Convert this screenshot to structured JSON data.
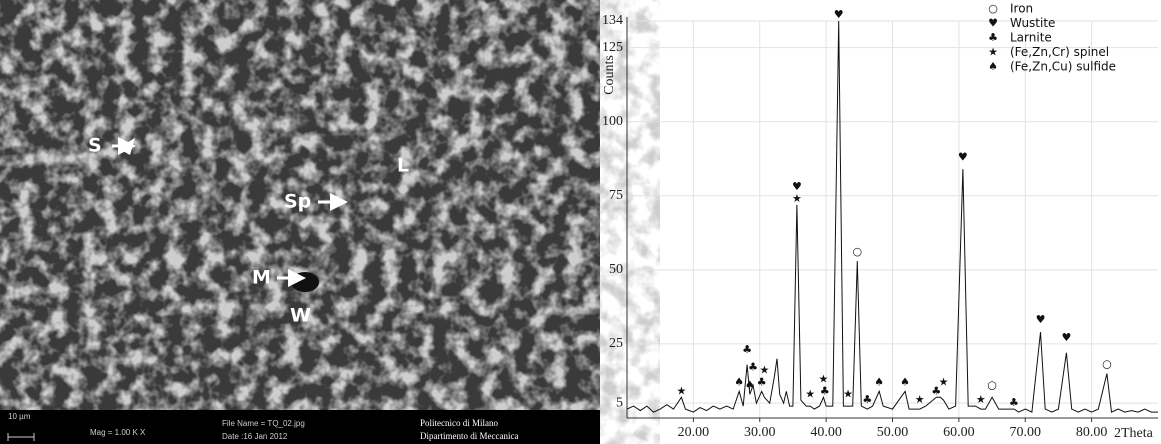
{
  "image": {
    "labels": [
      "S",
      "Sp",
      "L",
      "M",
      "W"
    ],
    "scale": "10 µm",
    "mag": "Mag =  1.00 K X",
    "file": "File Name = TQ_02.jpg",
    "date": "Date :16 Jan 2012",
    "institution": "Politecnico di Milano",
    "department": "Dipartimento di Meccanica"
  },
  "chart_data": {
    "type": "line",
    "ylabel": "Counts",
    "xlabel": "2Theta",
    "xlim": [
      10,
      90
    ],
    "ylim": [
      0,
      134
    ],
    "xticks": [
      {
        "value": 20,
        "label": "20.00"
      },
      {
        "value": 30,
        "label": "30.00"
      },
      {
        "value": 40,
        "label": "40.00"
      },
      {
        "value": 50,
        "label": "50.00"
      },
      {
        "value": 60,
        "label": "60.00"
      },
      {
        "value": 70,
        "label": "70.00"
      },
      {
        "value": 80,
        "label": "80.00"
      }
    ],
    "yticks": [
      5,
      25,
      50,
      75,
      100,
      125,
      134
    ],
    "grid": true,
    "legend": "upper right",
    "series": [
      {
        "color": "#111111",
        "x": [
          10,
          11,
          12,
          13,
          14,
          15,
          16,
          17,
          18.2,
          18.8,
          20,
          21,
          22,
          23,
          24,
          25,
          26,
          26.9,
          27.5,
          28.1,
          28.5,
          29.0,
          29.5,
          30.3,
          30.7,
          31.5,
          32.2,
          32.6,
          33,
          33.6,
          34,
          34.5,
          35.0,
          35.6,
          36.2,
          37,
          37.6,
          38.2,
          39,
          39.6,
          40,
          41,
          41.9,
          42.6,
          43.3,
          44,
          44.7,
          45.3,
          46.2,
          47,
          48,
          48.6,
          50,
          51.9,
          52.5,
          54.1,
          55,
          56.6,
          57.2,
          57.7,
          58.5,
          59.5,
          60.6,
          61.4,
          62.5,
          63.3,
          64,
          65,
          66,
          67,
          68.3,
          69,
          70,
          71,
          72.3,
          73,
          74,
          75,
          76.2,
          77,
          78,
          79,
          80,
          81,
          82.3,
          83,
          84,
          85,
          86,
          87,
          88,
          89,
          90
        ],
        "values": [
          3,
          4,
          2.5,
          4,
          2,
          3,
          4.5,
          3,
          7,
          3,
          2,
          3.5,
          2.5,
          4,
          3,
          4,
          3,
          9,
          4,
          18,
          8,
          11,
          5,
          9,
          7,
          5,
          14,
          20,
          8,
          5,
          9,
          4,
          4,
          72,
          6,
          4,
          4,
          3,
          4,
          7,
          4,
          4,
          134,
          4,
          4,
          4,
          53,
          4,
          3,
          4,
          9,
          4,
          3,
          9,
          3,
          3,
          4,
          7,
          7,
          6,
          3,
          4,
          84,
          4,
          4,
          3,
          3,
          7,
          3,
          3,
          3,
          2,
          3,
          2,
          29,
          3,
          2,
          3,
          22,
          3,
          2,
          3,
          2,
          3,
          15,
          2,
          3,
          2,
          2.5,
          2,
          3,
          2,
          2
        ]
      }
    ],
    "markers": [
      {
        "name": "Iron",
        "symbol": "○",
        "x": [
          44.7,
          65.0,
          82.3
        ],
        "y": [
          56,
          11,
          18
        ]
      },
      {
        "name": "Wustite",
        "symbol": "♥",
        "x": [
          35.6,
          41.9,
          60.6,
          72.3,
          76.2
        ],
        "y": [
          78,
          136,
          88,
          33,
          27
        ]
      },
      {
        "name": "Larnite",
        "symbol": "♣",
        "x": [
          28.1,
          29.0,
          30.3,
          39.8,
          46.2,
          56.6,
          68.3
        ],
        "y": [
          23,
          17,
          12,
          9,
          6,
          9,
          5
        ]
      },
      {
        "name": "(Fe,Zn,Cr) spinel",
        "symbol": "★",
        "x": [
          18.2,
          30.7,
          35.6,
          37.6,
          39.6,
          43.3,
          54.1,
          57.7,
          63.3
        ],
        "y": [
          9,
          16,
          74,
          8,
          13,
          8,
          6,
          12,
          6
        ]
      },
      {
        "name": "(Fe,Zn,Cu) sulfide",
        "symbol": "♠",
        "x": [
          26.9,
          28.5,
          48.0,
          51.9
        ],
        "y": [
          12,
          11,
          12,
          12
        ]
      }
    ]
  }
}
